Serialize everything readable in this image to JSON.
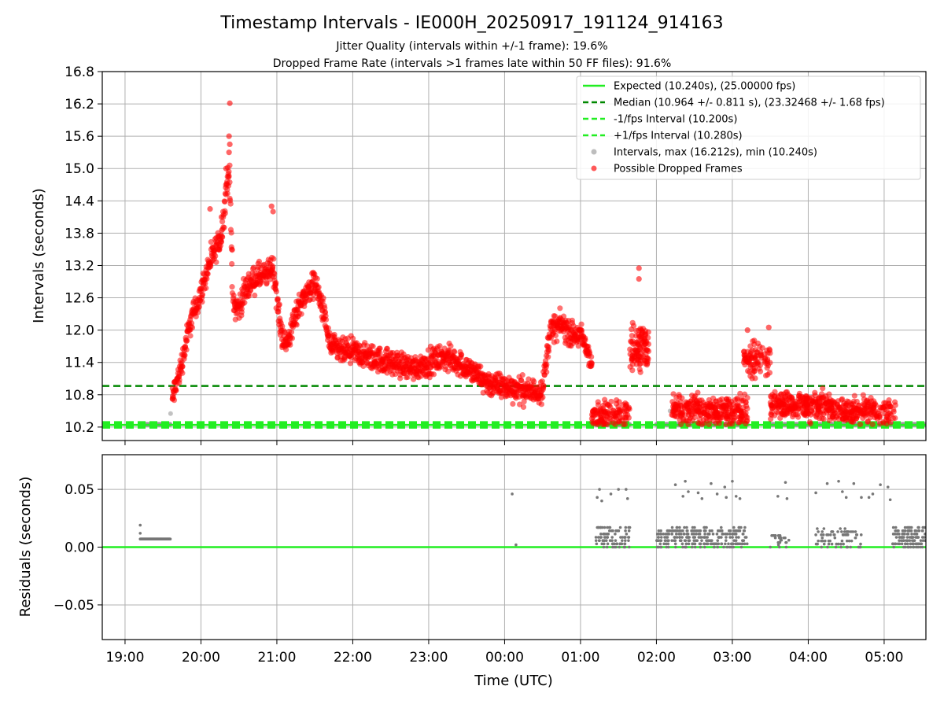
{
  "chart_data": [
    {
      "type": "scatter",
      "title": "Timestamp Intervals - IE000H_20250917_191124_914163",
      "subtitle_lines": [
        "Jitter Quality (intervals within +/-1 frame): 19.6%",
        "Dropped Frame Rate (intervals >1 frames late within 50 FF files): 91.6%"
      ],
      "xlabel": "",
      "ylabel": "Intervals (seconds)",
      "x_range_hours": [
        18.7,
        29.55
      ],
      "ylim": [
        9.95,
        16.8
      ],
      "yticks": [
        10.2,
        10.8,
        11.4,
        12.0,
        12.6,
        13.2,
        13.8,
        14.4,
        15.0,
        15.6,
        16.2,
        16.8
      ],
      "ytick_labels": [
        "10.2",
        "10.8",
        "11.4",
        "12.0",
        "12.6",
        "13.2",
        "13.8",
        "14.4",
        "15.0",
        "15.6",
        "16.2",
        "16.8"
      ],
      "grid": true,
      "legend_position": "top-right",
      "legend": [
        {
          "label": "Expected (10.240s), (25.00000 fps)",
          "style": "solid-line",
          "color": "#22ee22"
        },
        {
          "label": "Median (10.964 +/- 0.811 s), (23.32468 +/- 1.68 fps)",
          "style": "dashed-line",
          "color": "#008800"
        },
        {
          "label": "-1/fps Interval (10.200s)",
          "style": "dashed-line",
          "color": "#22ee22"
        },
        {
          "label": "+1/fps Interval (10.280s)",
          "style": "dashed-line",
          "color": "#22ee22"
        },
        {
          "label": "Intervals, max (16.212s), min (10.240s)",
          "style": "marker",
          "color": "#999999"
        },
        {
          "label": "Possible Dropped Frames",
          "style": "marker",
          "color": "#ff0000"
        }
      ],
      "reference_lines": {
        "expected": 10.24,
        "median": 10.964,
        "minus_one_frame": 10.2,
        "plus_one_frame": 10.28
      },
      "dropped_frames_trend": {
        "x_hours": [
          19.62,
          19.75,
          19.85,
          20.0,
          20.1,
          20.2,
          20.28,
          20.33,
          20.38,
          20.42,
          20.5,
          20.6,
          20.75,
          20.85,
          20.95,
          21.05,
          21.12,
          21.3,
          21.5,
          21.62,
          21.7,
          21.85,
          22.0,
          22.2,
          22.5,
          22.8,
          23.0,
          23.2,
          23.4,
          23.6,
          23.8,
          24.0,
          24.2,
          24.35,
          24.5,
          24.6,
          24.75,
          24.9,
          25.0,
          25.1,
          25.15
        ],
        "y_intervals": [
          10.7,
          11.4,
          12.1,
          12.7,
          13.2,
          13.5,
          13.8,
          14.6,
          14.9,
          12.5,
          12.4,
          12.8,
          13.0,
          13.0,
          13.2,
          12.0,
          11.7,
          12.5,
          12.9,
          12.3,
          11.7,
          11.6,
          11.6,
          11.5,
          11.4,
          11.3,
          11.4,
          11.5,
          11.4,
          11.2,
          11.0,
          10.95,
          10.9,
          10.85,
          10.9,
          12.0,
          12.1,
          11.9,
          11.9,
          11.6,
          11.4
        ],
        "spread": 0.35
      },
      "dropped_frames_sparse_clusters": [
        {
          "x_start": 25.15,
          "x_end": 25.65,
          "y_center": 10.45,
          "y_spread": 0.25,
          "count": 120
        },
        {
          "x_start": 25.65,
          "x_end": 25.9,
          "y_center": 11.7,
          "y_spread": 0.45,
          "count": 110
        },
        {
          "x_start": 26.2,
          "x_end": 27.2,
          "y_center": 10.5,
          "y_spread": 0.28,
          "count": 300
        },
        {
          "x_start": 27.15,
          "x_end": 27.5,
          "y_center": 11.45,
          "y_spread": 0.35,
          "count": 90
        },
        {
          "x_start": 27.5,
          "x_end": 28.3,
          "y_center": 10.6,
          "y_spread": 0.28,
          "count": 260
        },
        {
          "x_start": 28.3,
          "x_end": 29.15,
          "y_center": 10.5,
          "y_spread": 0.25,
          "count": 220
        }
      ],
      "dropped_frames_outliers": [
        {
          "x": 20.38,
          "y": 16.212
        },
        {
          "x": 20.37,
          "y": 15.6
        },
        {
          "x": 20.38,
          "y": 15.45
        },
        {
          "x": 20.37,
          "y": 15.3
        },
        {
          "x": 20.33,
          "y": 15.0
        },
        {
          "x": 20.35,
          "y": 14.85
        },
        {
          "x": 20.12,
          "y": 14.25
        },
        {
          "x": 20.27,
          "y": 14.1
        },
        {
          "x": 20.93,
          "y": 14.3
        },
        {
          "x": 20.95,
          "y": 14.2
        },
        {
          "x": 25.77,
          "y": 13.15
        },
        {
          "x": 25.77,
          "y": 12.95
        },
        {
          "x": 27.48,
          "y": 12.05
        },
        {
          "x": 27.2,
          "y": 12.0
        }
      ],
      "grey_intervals": {
        "segments": [
          {
            "x_start": 19.2,
            "x_end": 19.6,
            "y": 10.25
          },
          {
            "x_start": 25.2,
            "x_end": 25.65,
            "y": 10.25
          },
          {
            "x_start": 26.0,
            "x_end": 27.2,
            "y": 10.25
          },
          {
            "x_start": 27.5,
            "x_end": 29.55,
            "y": 10.25
          }
        ],
        "extra_points": [
          {
            "x": 19.6,
            "y": 10.45
          },
          {
            "x": 26.18,
            "y": 10.5
          }
        ]
      },
      "xticks_hours": [
        19,
        20,
        21,
        22,
        23,
        24,
        25,
        26,
        27,
        28,
        29
      ]
    },
    {
      "type": "scatter",
      "xlabel": "Time (UTC)",
      "ylabel": "Residuals (seconds)",
      "x_range_hours": [
        18.7,
        29.55
      ],
      "ylim": [
        -0.08,
        0.08
      ],
      "yticks": [
        -0.05,
        0.0,
        0.05
      ],
      "ytick_labels": [
        "−0.05",
        "0.00",
        "0.05"
      ],
      "grid": true,
      "zero_line_color": "#22ee22",
      "xticks_hours": [
        19,
        20,
        21,
        22,
        23,
        24,
        25,
        26,
        27,
        28,
        29
      ],
      "xtick_labels": [
        "19:00",
        "20:00",
        "21:00",
        "22:00",
        "23:00",
        "00:00",
        "01:00",
        "02:00",
        "03:00",
        "04:00",
        "05:00"
      ],
      "residual_points": {
        "early_block": {
          "x_start": 19.2,
          "x_end": 19.6,
          "y": 0.007,
          "spike": {
            "x": 19.2,
            "y": 0.019
          }
        },
        "isolated": [
          {
            "x": 24.1,
            "y": 0.046
          },
          {
            "x": 24.15,
            "y": 0.002
          }
        ],
        "clusters": [
          {
            "x_start": 25.2,
            "x_end": 25.65,
            "y_low": 0.0,
            "y_high": 0.017,
            "count": 90
          },
          {
            "x_start": 26.0,
            "x_end": 27.2,
            "y_low": 0.0,
            "y_high": 0.017,
            "count": 260
          },
          {
            "x_start": 27.5,
            "x_end": 27.75,
            "y_low": 0.0,
            "y_high": 0.012,
            "count": 25
          },
          {
            "x_start": 28.1,
            "x_end": 28.7,
            "y_low": 0.0,
            "y_high": 0.016,
            "count": 70
          },
          {
            "x_start": 29.1,
            "x_end": 29.55,
            "y_low": 0.0,
            "y_high": 0.017,
            "count": 120
          }
        ],
        "upper": [
          {
            "x": 25.25,
            "y": 0.05
          },
          {
            "x": 25.22,
            "y": 0.043
          },
          {
            "x": 25.28,
            "y": 0.04
          },
          {
            "x": 25.4,
            "y": 0.046
          },
          {
            "x": 25.5,
            "y": 0.05
          },
          {
            "x": 25.6,
            "y": 0.05
          },
          {
            "x": 25.62,
            "y": 0.042
          },
          {
            "x": 26.25,
            "y": 0.054
          },
          {
            "x": 26.35,
            "y": 0.044
          },
          {
            "x": 26.38,
            "y": 0.057
          },
          {
            "x": 26.42,
            "y": 0.048
          },
          {
            "x": 26.55,
            "y": 0.047
          },
          {
            "x": 26.6,
            "y": 0.042
          },
          {
            "x": 26.72,
            "y": 0.055
          },
          {
            "x": 26.8,
            "y": 0.046
          },
          {
            "x": 26.9,
            "y": 0.052
          },
          {
            "x": 26.92,
            "y": 0.043
          },
          {
            "x": 27.0,
            "y": 0.057
          },
          {
            "x": 27.05,
            "y": 0.044
          },
          {
            "x": 27.1,
            "y": 0.042
          },
          {
            "x": 27.6,
            "y": 0.044
          },
          {
            "x": 27.7,
            "y": 0.056
          },
          {
            "x": 27.72,
            "y": 0.042
          },
          {
            "x": 28.1,
            "y": 0.047
          },
          {
            "x": 28.25,
            "y": 0.055
          },
          {
            "x": 28.4,
            "y": 0.057
          },
          {
            "x": 28.45,
            "y": 0.048
          },
          {
            "x": 28.5,
            "y": 0.043
          },
          {
            "x": 28.6,
            "y": 0.055
          },
          {
            "x": 28.7,
            "y": 0.043
          },
          {
            "x": 28.8,
            "y": 0.043
          },
          {
            "x": 28.85,
            "y": 0.046
          },
          {
            "x": 28.95,
            "y": 0.054
          },
          {
            "x": 29.05,
            "y": 0.052
          },
          {
            "x": 29.08,
            "y": 0.041
          }
        ]
      }
    }
  ]
}
